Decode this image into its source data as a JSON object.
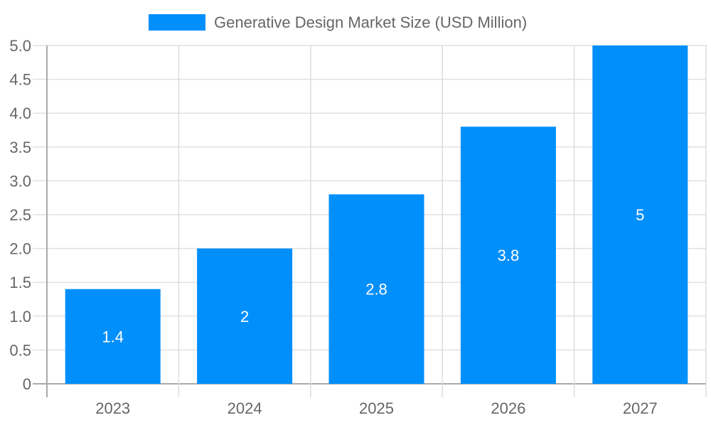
{
  "chart_data": {
    "type": "bar",
    "categories": [
      "2023",
      "2024",
      "2025",
      "2026",
      "2027"
    ],
    "series": [
      {
        "name": "Generative Design Market Size (USD Million)",
        "values": [
          1.4,
          2,
          2.8,
          3.8,
          5
        ],
        "color": "#008ffb"
      }
    ],
    "data_labels": [
      "1.4",
      "2",
      "2.8",
      "3.8",
      "5"
    ],
    "yticks": [
      "0",
      "0.5",
      "1.0",
      "1.5",
      "2.0",
      "2.5",
      "3.0",
      "3.5",
      "4.0",
      "4.5",
      "5.0"
    ],
    "ylim": [
      0,
      5
    ],
    "grid": true,
    "legend": "top-center",
    "title": "",
    "xlabel": "",
    "ylabel": ""
  }
}
